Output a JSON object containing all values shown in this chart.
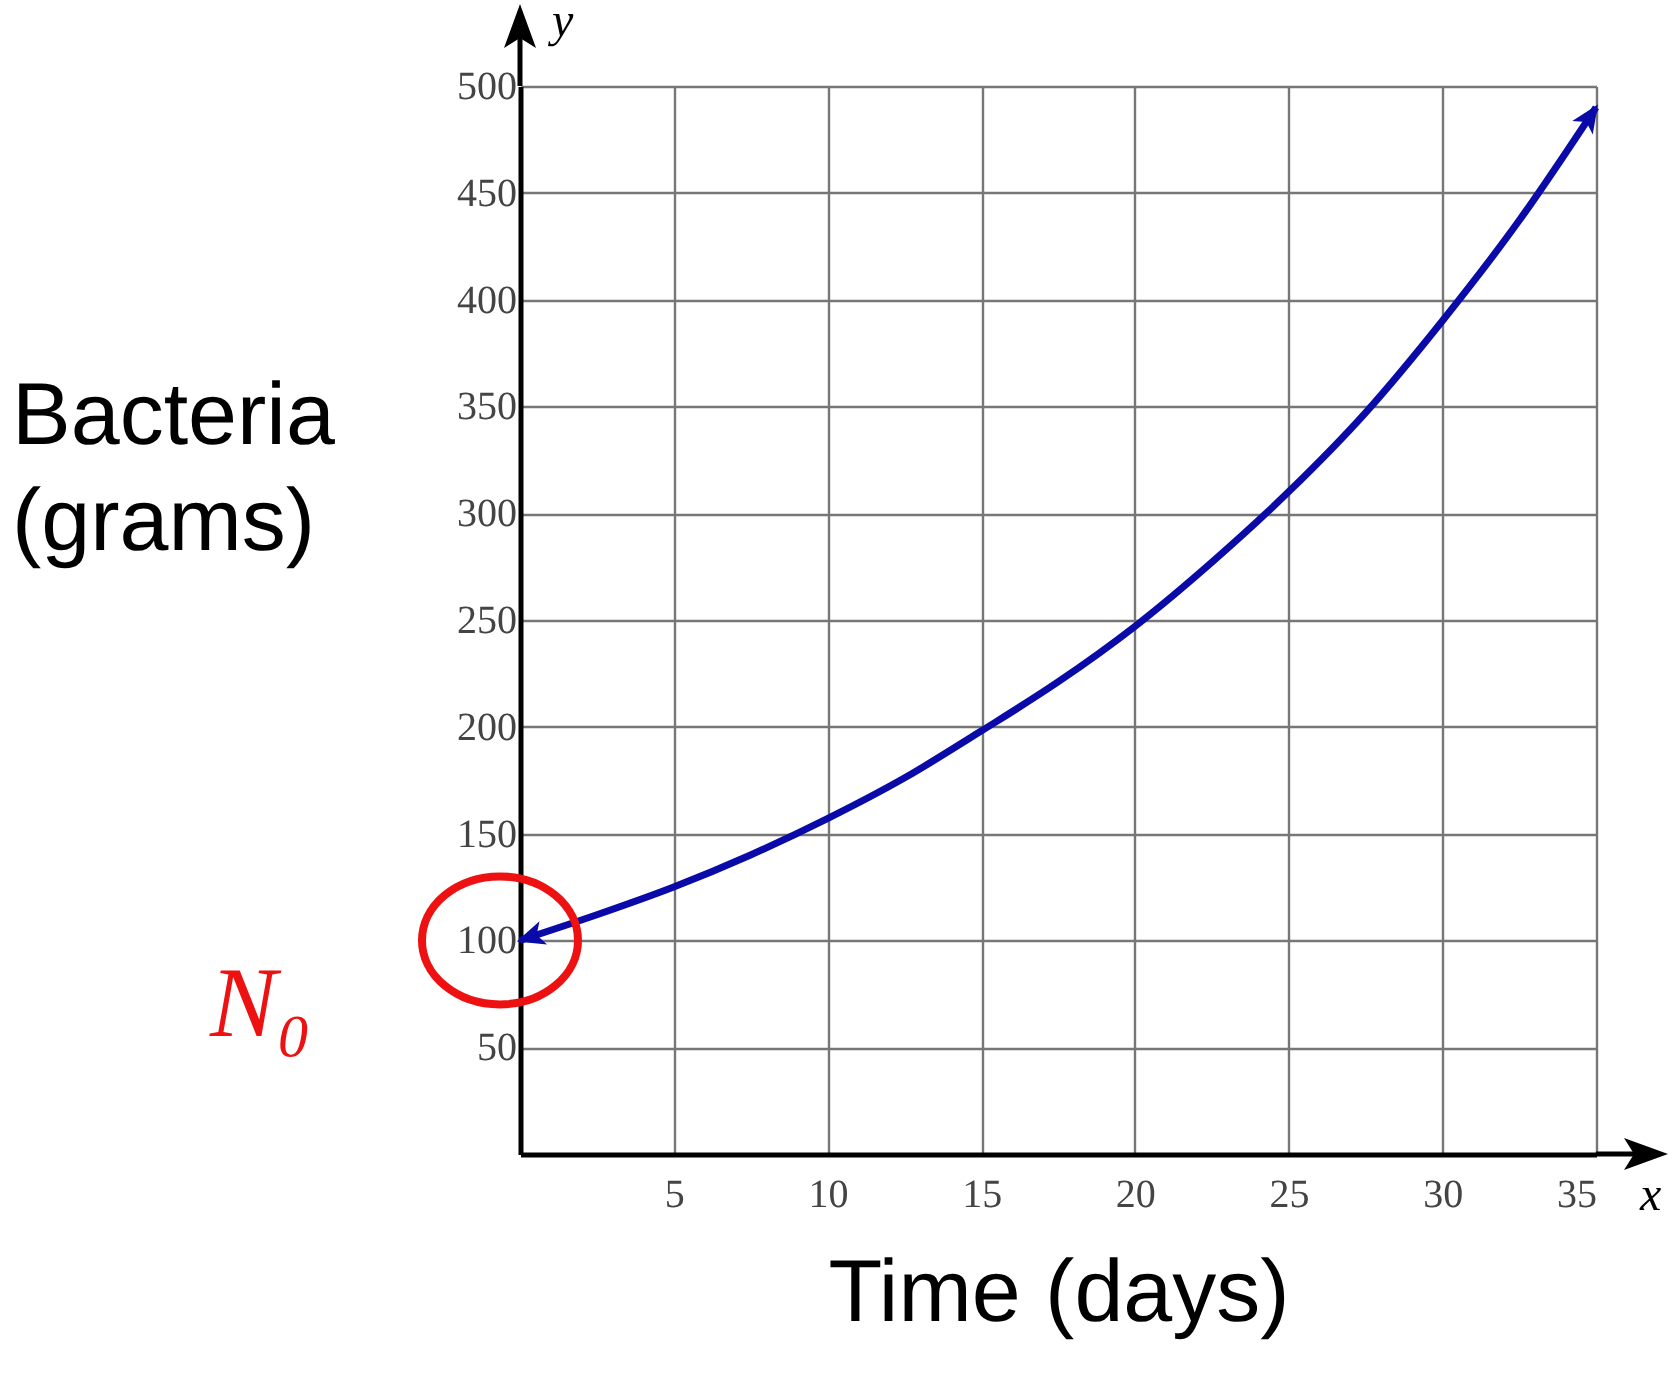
{
  "chart_data": {
    "type": "line",
    "xlabel": "Time (days)",
    "ylabel": "Bacteria (grams)",
    "x": [
      0,
      2.5,
      5,
      7.5,
      10,
      12.5,
      15,
      17.5,
      20,
      22.5,
      25,
      27.5,
      30,
      32.5,
      35
    ],
    "series": [
      {
        "color": "#0a0aa8",
        "values": [
          100,
          112,
          125,
          140,
          157,
          176,
          198,
          221,
          247,
          277,
          310,
          347,
          390,
          437,
          490
        ]
      }
    ],
    "xlim": [
      0,
      35
    ],
    "ylim": [
      0,
      500
    ],
    "xticks": [
      5,
      10,
      15,
      20,
      25,
      30,
      35
    ],
    "yticks": [
      50,
      100,
      150,
      200,
      250,
      300,
      350,
      400,
      450,
      500
    ],
    "grid": true,
    "marker": "none",
    "annotations": [
      {
        "text": "N₀",
        "x": 0,
        "y": 100
      },
      "x",
      "y"
    ]
  }
}
